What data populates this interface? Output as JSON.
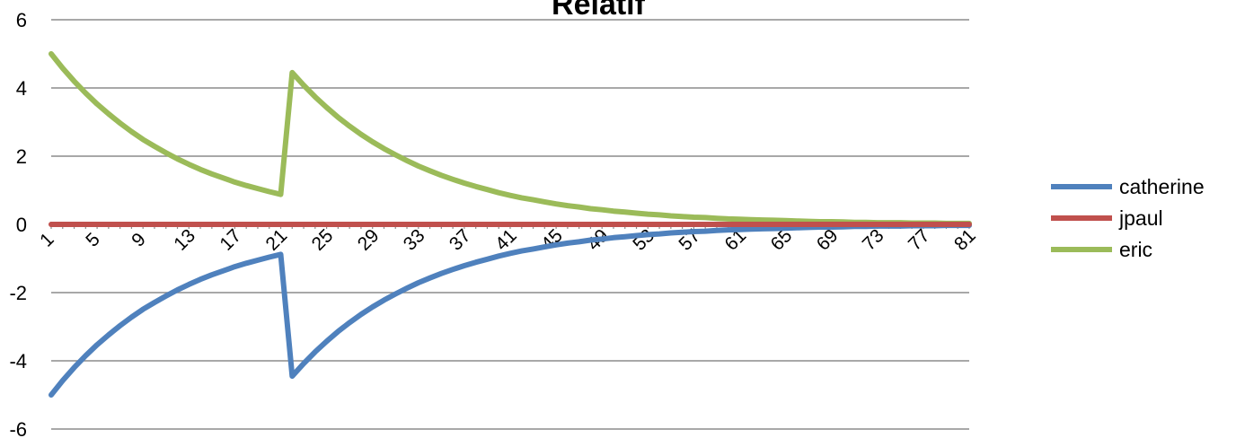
{
  "chart_data": {
    "type": "line",
    "title": "Relatif",
    "xlabel": "",
    "ylabel": "",
    "ylim": [
      -6,
      6
    ],
    "yticks": [
      -6,
      -4,
      -2,
      0,
      2,
      4,
      6
    ],
    "x_range": [
      1,
      81
    ],
    "xticks": [
      1,
      5,
      9,
      13,
      17,
      21,
      25,
      29,
      33,
      37,
      41,
      45,
      49,
      53,
      57,
      61,
      65,
      69,
      73,
      77,
      81
    ],
    "grid": "horizontal",
    "legend_position": "right",
    "series": [
      {
        "name": "catherine",
        "color": "#4F81BD",
        "x": [
          1,
          2,
          3,
          4,
          5,
          6,
          7,
          8,
          9,
          10,
          11,
          12,
          13,
          14,
          15,
          16,
          17,
          18,
          19,
          20,
          21,
          22,
          23,
          24,
          25,
          26,
          27,
          28,
          29,
          30,
          31,
          32,
          33,
          34,
          35,
          36,
          37,
          38,
          39,
          40,
          41,
          42,
          43,
          44,
          45,
          46,
          47,
          48,
          49,
          50,
          51,
          52,
          53,
          54,
          55,
          56,
          57,
          58,
          59,
          60,
          61,
          62,
          63,
          64,
          65,
          66,
          67,
          68,
          69,
          70,
          71,
          72,
          73,
          74,
          75,
          76,
          77,
          78,
          79,
          80,
          81
        ],
        "values": [
          -5.0,
          -4.58,
          -4.2,
          -3.85,
          -3.53,
          -3.24,
          -2.97,
          -2.72,
          -2.49,
          -2.29,
          -2.1,
          -1.92,
          -1.76,
          -1.61,
          -1.48,
          -1.36,
          -1.24,
          -1.14,
          -1.05,
          -0.96,
          -0.88,
          -4.45,
          -4.08,
          -3.74,
          -3.43,
          -3.14,
          -2.88,
          -2.64,
          -2.42,
          -2.22,
          -2.04,
          -1.87,
          -1.71,
          -1.57,
          -1.44,
          -1.32,
          -1.21,
          -1.11,
          -1.02,
          -0.93,
          -0.85,
          -0.78,
          -0.72,
          -0.66,
          -0.6,
          -0.55,
          -0.51,
          -0.46,
          -0.43,
          -0.39,
          -0.36,
          -0.33,
          -0.3,
          -0.28,
          -0.25,
          -0.23,
          -0.21,
          -0.2,
          -0.18,
          -0.16,
          -0.15,
          -0.14,
          -0.13,
          -0.12,
          -0.11,
          -0.1,
          -0.09,
          -0.08,
          -0.08,
          -0.07,
          -0.06,
          -0.06,
          -0.05,
          -0.05,
          -0.05,
          -0.04,
          -0.04,
          -0.04,
          -0.03,
          -0.03,
          -0.03
        ]
      },
      {
        "name": "jpaul",
        "color": "#C0504D",
        "x": [
          1,
          81
        ],
        "values": [
          0,
          0
        ]
      },
      {
        "name": "eric",
        "color": "#9BBB59",
        "x": [
          1,
          2,
          3,
          4,
          5,
          6,
          7,
          8,
          9,
          10,
          11,
          12,
          13,
          14,
          15,
          16,
          17,
          18,
          19,
          20,
          21,
          22,
          23,
          24,
          25,
          26,
          27,
          28,
          29,
          30,
          31,
          32,
          33,
          34,
          35,
          36,
          37,
          38,
          39,
          40,
          41,
          42,
          43,
          44,
          45,
          46,
          47,
          48,
          49,
          50,
          51,
          52,
          53,
          54,
          55,
          56,
          57,
          58,
          59,
          60,
          61,
          62,
          63,
          64,
          65,
          66,
          67,
          68,
          69,
          70,
          71,
          72,
          73,
          74,
          75,
          76,
          77,
          78,
          79,
          80,
          81
        ],
        "values": [
          5.0,
          4.58,
          4.2,
          3.85,
          3.53,
          3.24,
          2.97,
          2.72,
          2.49,
          2.29,
          2.1,
          1.92,
          1.76,
          1.61,
          1.48,
          1.36,
          1.24,
          1.14,
          1.05,
          0.96,
          0.88,
          4.45,
          4.08,
          3.74,
          3.43,
          3.14,
          2.88,
          2.64,
          2.42,
          2.22,
          2.04,
          1.87,
          1.71,
          1.57,
          1.44,
          1.32,
          1.21,
          1.11,
          1.02,
          0.93,
          0.85,
          0.78,
          0.72,
          0.66,
          0.6,
          0.55,
          0.51,
          0.46,
          0.43,
          0.39,
          0.36,
          0.33,
          0.3,
          0.28,
          0.25,
          0.23,
          0.21,
          0.2,
          0.18,
          0.16,
          0.15,
          0.14,
          0.13,
          0.12,
          0.11,
          0.1,
          0.09,
          0.08,
          0.08,
          0.07,
          0.06,
          0.06,
          0.05,
          0.05,
          0.05,
          0.04,
          0.04,
          0.04,
          0.03,
          0.03,
          0.03
        ]
      }
    ]
  }
}
